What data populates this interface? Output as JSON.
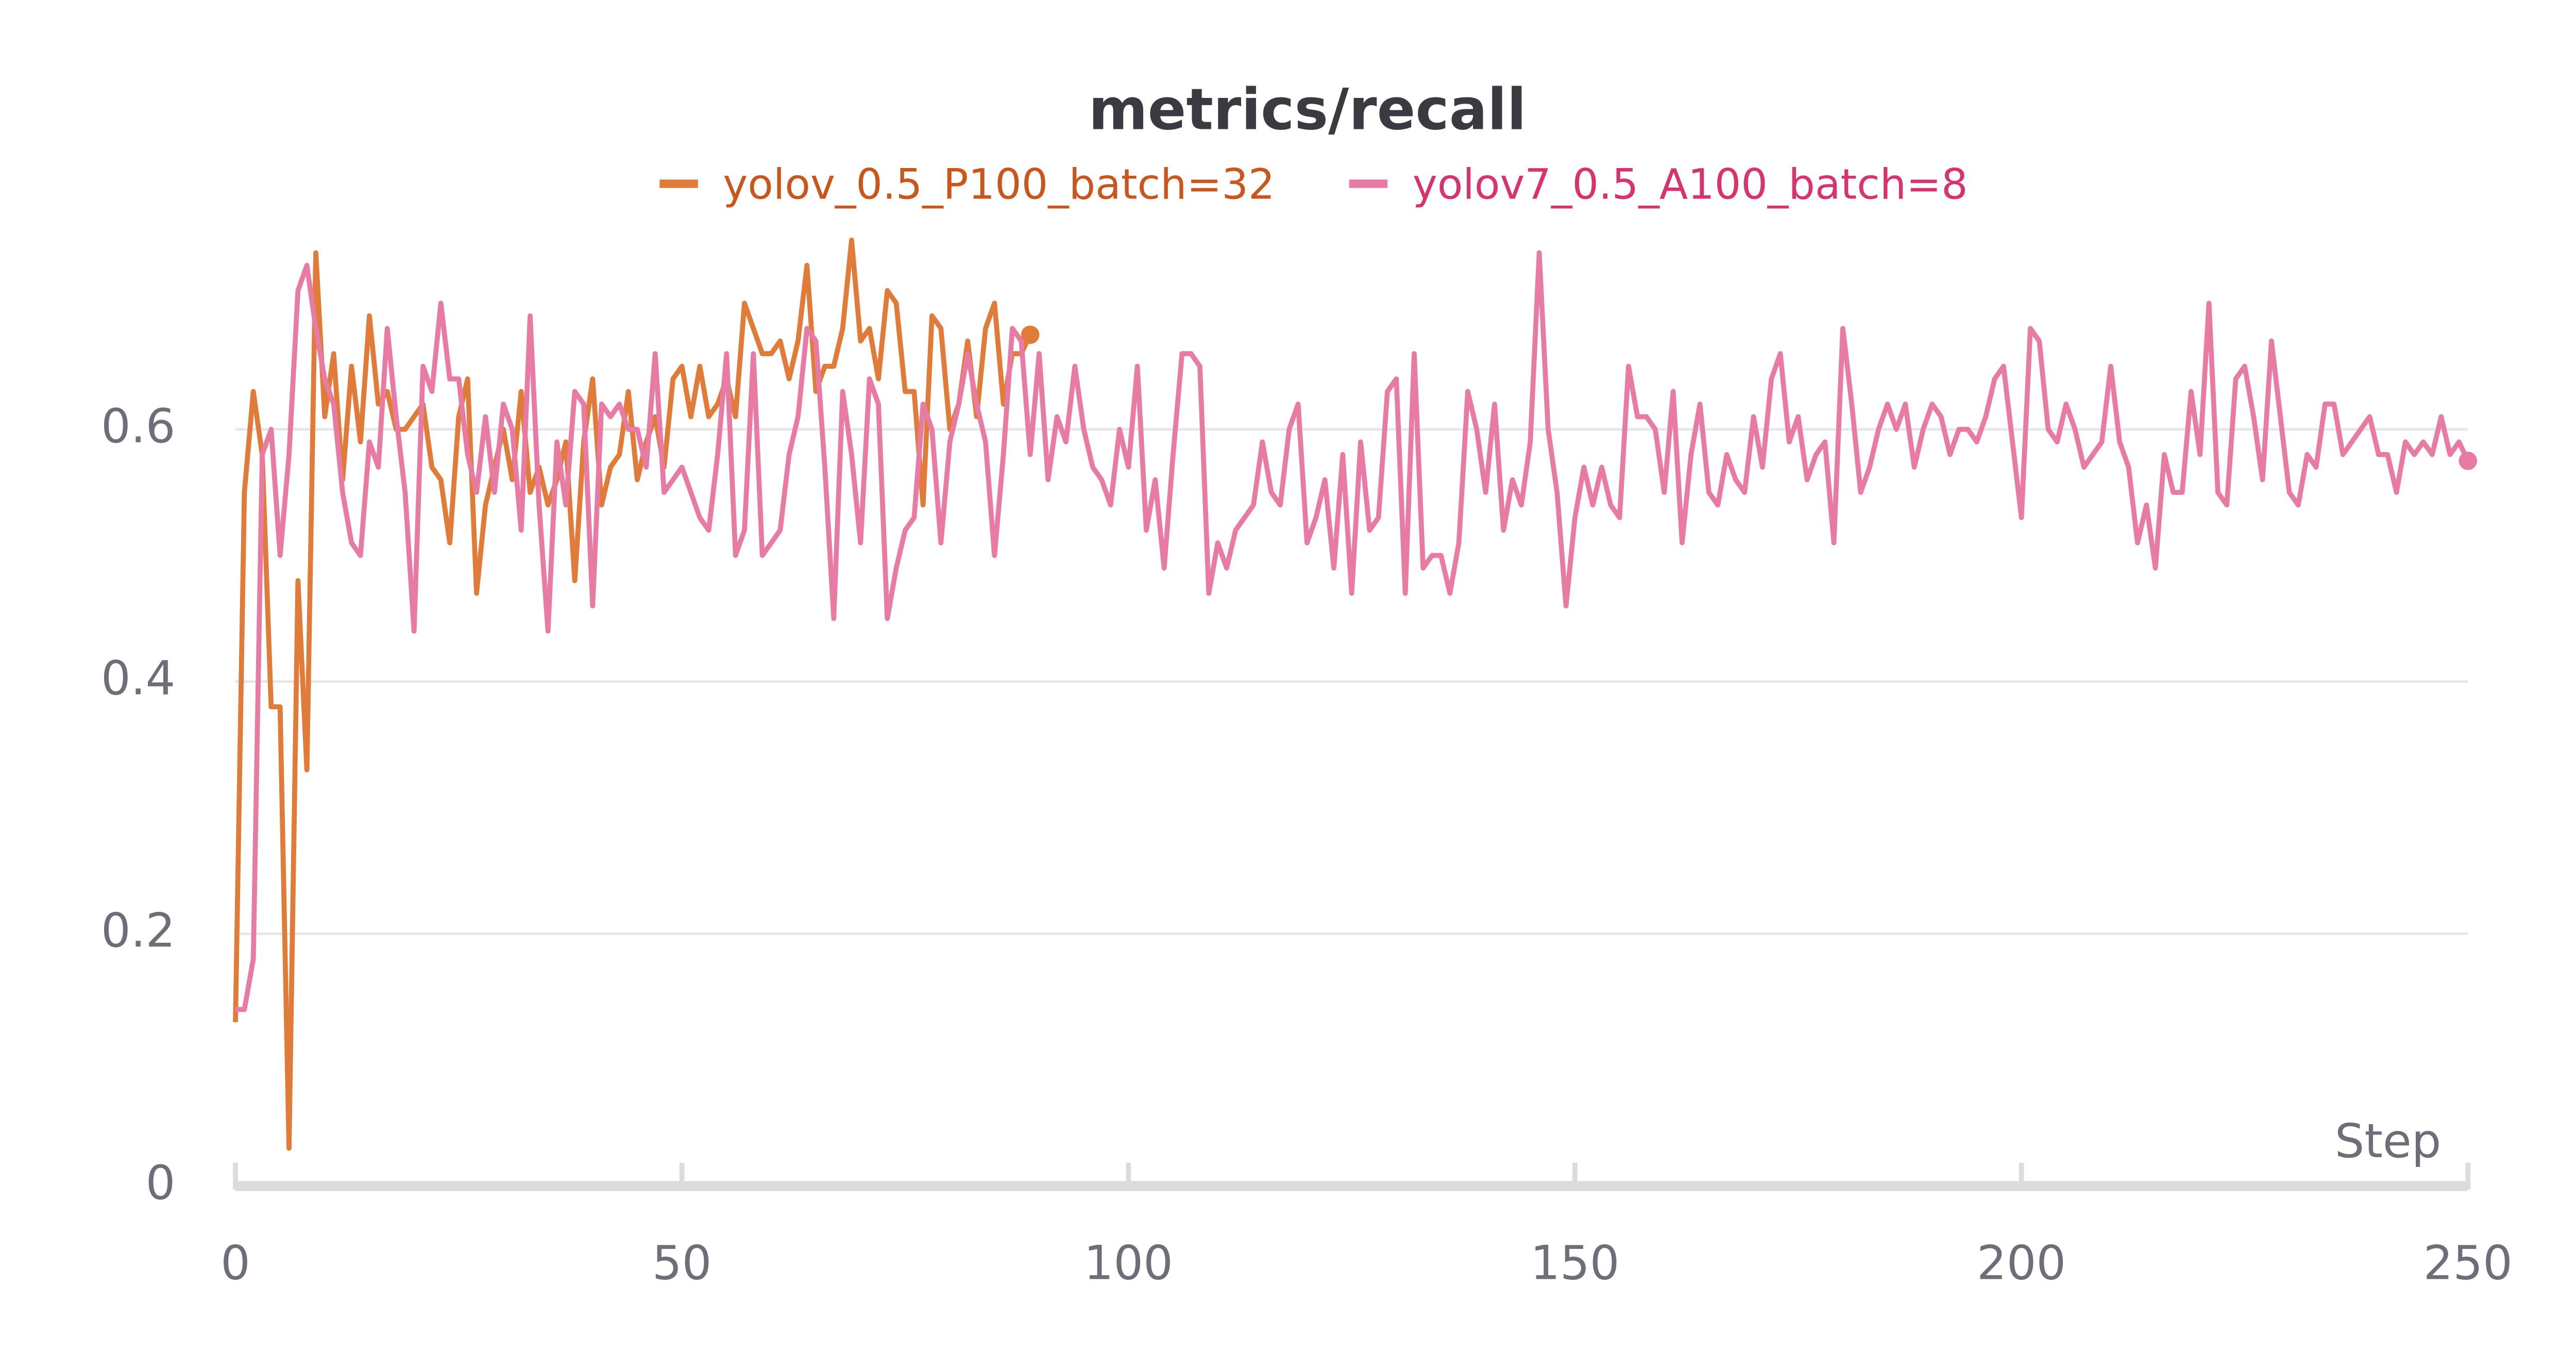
{
  "chart_data": {
    "type": "line",
    "title": "metrics/recall",
    "x_label": "Step",
    "xlim": [
      0,
      250
    ],
    "xticks": [
      0,
      50,
      100,
      150,
      200,
      250
    ],
    "ylim": [
      0,
      0.76
    ],
    "yticks": [
      0,
      0.2,
      0.4,
      0.6
    ],
    "grid": true,
    "x": [
      0,
      1,
      2,
      3,
      4,
      5,
      6,
      7,
      8,
      9,
      10,
      11,
      12,
      13,
      14,
      15,
      16,
      17,
      18,
      19,
      20,
      21,
      22,
      23,
      24,
      25,
      26,
      27,
      28,
      29,
      30,
      31,
      32,
      33,
      34,
      35,
      36,
      37,
      38,
      39,
      40,
      41,
      42,
      43,
      44,
      45,
      46,
      47,
      48,
      49,
      50,
      51,
      52,
      53,
      54,
      55,
      56,
      57,
      58,
      59,
      60,
      61,
      62,
      63,
      64,
      65,
      66,
      67,
      68,
      69,
      70,
      71,
      72,
      73,
      74,
      75,
      76,
      77,
      78,
      79,
      80,
      81,
      82,
      83,
      84,
      85,
      86,
      87,
      88,
      89,
      90,
      91,
      92,
      93,
      94,
      95,
      96,
      97,
      98,
      99,
      100,
      101,
      102,
      103,
      104,
      105,
      106,
      107,
      108,
      109,
      110,
      111,
      112,
      113,
      114,
      115,
      116,
      117,
      118,
      119,
      120,
      121,
      122,
      123,
      124,
      125,
      126,
      127,
      128,
      129,
      130,
      131,
      132,
      133,
      134,
      135,
      136,
      137,
      138,
      139,
      140,
      141,
      142,
      143,
      144,
      145,
      146,
      147,
      148,
      149,
      150,
      151,
      152,
      153,
      154,
      155,
      156,
      157,
      158,
      159,
      160,
      161,
      162,
      163,
      164,
      165,
      166,
      167,
      168,
      169,
      170,
      171,
      172,
      173,
      174,
      175,
      176,
      177,
      178,
      179,
      180,
      181,
      182,
      183,
      184,
      185,
      186,
      187,
      188,
      189,
      190,
      191,
      192,
      193,
      194,
      195,
      196,
      197,
      198,
      199,
      200,
      201,
      202,
      203,
      204,
      205,
      206,
      207,
      208,
      209,
      210,
      211,
      212,
      213,
      214,
      215,
      216,
      217,
      218,
      219,
      220,
      221,
      222,
      223,
      224,
      225,
      226,
      227,
      228,
      229,
      230,
      231,
      232,
      233,
      234,
      235,
      236,
      237,
      238,
      239,
      240,
      241,
      242,
      243,
      244,
      245,
      246,
      247,
      248,
      249,
      250
    ],
    "series": [
      {
        "name": "yolov_0.5_P100_batch=32",
        "color": "#e07b39",
        "values": [
          0.13,
          0.55,
          0.63,
          0.58,
          0.38,
          0.38,
          0.03,
          0.48,
          0.33,
          0.74,
          0.61,
          0.66,
          0.56,
          0.65,
          0.59,
          0.69,
          0.62,
          0.63,
          0.6,
          0.6,
          0.61,
          0.62,
          0.57,
          0.56,
          0.51,
          0.61,
          0.64,
          0.47,
          0.54,
          0.57,
          0.6,
          0.56,
          0.63,
          0.55,
          0.57,
          0.54,
          0.56,
          0.59,
          0.48,
          0.59,
          0.64,
          0.54,
          0.57,
          0.58,
          0.63,
          0.56,
          0.59,
          0.61,
          0.57,
          0.64,
          0.65,
          0.61,
          0.65,
          0.61,
          0.62,
          0.64,
          0.61,
          0.7,
          0.68,
          0.66,
          0.66,
          0.67,
          0.64,
          0.67,
          0.73,
          0.63,
          0.65,
          0.65,
          0.68,
          0.75,
          0.67,
          0.68,
          0.64,
          0.71,
          0.7,
          0.63,
          0.63,
          0.54,
          0.69,
          0.68,
          0.6,
          0.62,
          0.67,
          0.61,
          0.68,
          0.7,
          0.62,
          0.66,
          0.66,
          0.675,
          null,
          null,
          null,
          null,
          null,
          null,
          null,
          null,
          null,
          null,
          null,
          null,
          null,
          null,
          null,
          null,
          null,
          null,
          null,
          null,
          null,
          null,
          null,
          null,
          null,
          null,
          null,
          null,
          null,
          null,
          null,
          null,
          null,
          null,
          null,
          null,
          null,
          null,
          null,
          null,
          null,
          null,
          null,
          null,
          null,
          null,
          null,
          null,
          null,
          null,
          null,
          null,
          null,
          null,
          null,
          null,
          null,
          null,
          null,
          null,
          null,
          null,
          null,
          null,
          null,
          null,
          null,
          null,
          null,
          null,
          null,
          null,
          null,
          null,
          null,
          null,
          null,
          null,
          null,
          null,
          null,
          null,
          null,
          null,
          null,
          null,
          null,
          null,
          null,
          null,
          null,
          null,
          null,
          null,
          null,
          null,
          null,
          null,
          null,
          null,
          null,
          null,
          null,
          null,
          null,
          null,
          null,
          null,
          null,
          null,
          null,
          null,
          null,
          null,
          null,
          null,
          null,
          null,
          null,
          null,
          null,
          null,
          null,
          null,
          null,
          null,
          null,
          null,
          null,
          null,
          null,
          null,
          null,
          null,
          null,
          null,
          null,
          null,
          null,
          null,
          null,
          null,
          null,
          null,
          null,
          null,
          null,
          null,
          null,
          null,
          null,
          null,
          null,
          null,
          null,
          null,
          null,
          null,
          null,
          null,
          null
        ]
      },
      {
        "name": "yolov7_0.5_A100_batch=8",
        "color": "#e87ba4",
        "values": [
          0.14,
          0.14,
          0.18,
          0.58,
          0.6,
          0.5,
          0.58,
          0.71,
          0.73,
          0.68,
          0.64,
          0.62,
          0.55,
          0.51,
          0.5,
          0.59,
          0.57,
          0.68,
          0.61,
          0.55,
          0.44,
          0.65,
          0.63,
          0.7,
          0.64,
          0.64,
          0.58,
          0.55,
          0.61,
          0.55,
          0.62,
          0.6,
          0.52,
          0.69,
          0.54,
          0.44,
          0.59,
          0.54,
          0.63,
          0.62,
          0.46,
          0.62,
          0.61,
          0.62,
          0.6,
          0.6,
          0.57,
          0.66,
          0.55,
          0.56,
          0.57,
          0.55,
          0.53,
          0.52,
          0.58,
          0.66,
          0.5,
          0.52,
          0.66,
          0.5,
          0.51,
          0.52,
          0.58,
          0.61,
          0.68,
          0.67,
          0.57,
          0.45,
          0.63,
          0.58,
          0.51,
          0.64,
          0.62,
          0.45,
          0.49,
          0.52,
          0.53,
          0.62,
          0.6,
          0.51,
          0.59,
          0.62,
          0.66,
          0.62,
          0.59,
          0.5,
          0.58,
          0.68,
          0.67,
          0.58,
          0.66,
          0.56,
          0.61,
          0.59,
          0.65,
          0.6,
          0.57,
          0.56,
          0.54,
          0.6,
          0.57,
          0.65,
          0.52,
          0.56,
          0.49,
          0.58,
          0.66,
          0.66,
          0.65,
          0.47,
          0.51,
          0.49,
          0.52,
          0.53,
          0.54,
          0.59,
          0.55,
          0.54,
          0.6,
          0.62,
          0.51,
          0.53,
          0.56,
          0.49,
          0.58,
          0.47,
          0.59,
          0.52,
          0.53,
          0.63,
          0.64,
          0.47,
          0.66,
          0.49,
          0.5,
          0.5,
          0.47,
          0.51,
          0.63,
          0.6,
          0.55,
          0.62,
          0.52,
          0.56,
          0.54,
          0.59,
          0.74,
          0.6,
          0.55,
          0.46,
          0.53,
          0.57,
          0.54,
          0.57,
          0.54,
          0.53,
          0.65,
          0.61,
          0.61,
          0.6,
          0.55,
          0.63,
          0.51,
          0.58,
          0.62,
          0.55,
          0.54,
          0.58,
          0.56,
          0.55,
          0.61,
          0.57,
          0.64,
          0.66,
          0.59,
          0.61,
          0.56,
          0.58,
          0.59,
          0.51,
          0.68,
          0.62,
          0.55,
          0.57,
          0.6,
          0.62,
          0.6,
          0.62,
          0.57,
          0.6,
          0.62,
          0.61,
          0.58,
          0.6,
          0.6,
          0.59,
          0.61,
          0.64,
          0.65,
          0.59,
          0.53,
          0.68,
          0.67,
          0.6,
          0.59,
          0.62,
          0.6,
          0.57,
          0.58,
          0.59,
          0.65,
          0.59,
          0.57,
          0.51,
          0.54,
          0.49,
          0.58,
          0.55,
          0.55,
          0.63,
          0.58,
          0.7,
          0.55,
          0.54,
          0.64,
          0.65,
          0.61,
          0.56,
          0.67,
          0.61,
          0.55,
          0.54,
          0.58,
          0.57,
          0.62,
          0.62,
          0.58,
          0.59,
          0.6,
          0.61,
          0.58,
          0.58,
          0.55,
          0.59,
          0.58,
          0.59,
          0.58,
          0.61,
          0.58,
          0.59,
          0.575
        ]
      }
    ]
  }
}
